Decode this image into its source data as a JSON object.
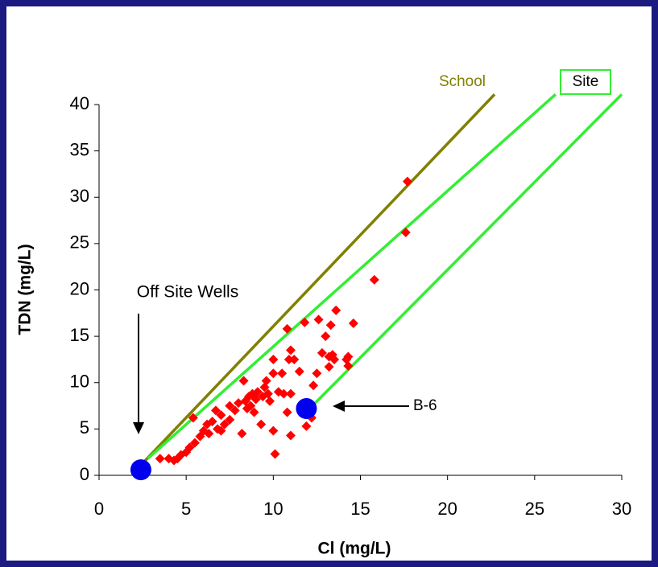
{
  "chart_data": {
    "type": "scatter",
    "x_label": "Cl (mg/L)",
    "y_label": "TDN (mg/L)",
    "xlim": [
      0,
      30
    ],
    "xticks": [
      0,
      5,
      10,
      15,
      20,
      25,
      30
    ],
    "ylim": [
      0,
      40
    ],
    "yticks": [
      0,
      5,
      10,
      15,
      20,
      25,
      30,
      35,
      40
    ],
    "series": [
      {
        "name": "School",
        "color": "#808000",
        "x": [
          2.5,
          22.7
        ],
        "values": [
          1.3,
          41.1
        ]
      },
      {
        "name": "Site",
        "color": "#33ee33",
        "x": [
          2.8,
          26.2,
          null,
          12.3,
          30
        ],
        "values": [
          1.8,
          41.1,
          null,
          7.6,
          41.1
        ]
      }
    ],
    "points": {
      "color": "#ff0000",
      "x": [
        3.5,
        4,
        4.3,
        4.5,
        4.7,
        5,
        5.2,
        5.4,
        5.5,
        5.8,
        6,
        6.2,
        6.3,
        6.5,
        6.7,
        6.8,
        7,
        7,
        7.2,
        7.5,
        7.5,
        7.8,
        8,
        8.2,
        8.3,
        8.4,
        8.5,
        8.6,
        8.7,
        8.8,
        8.9,
        9,
        9.1,
        9.3,
        9.4,
        9.5,
        9.6,
        9.7,
        9.8,
        10,
        10,
        10,
        10.1,
        10.3,
        10.5,
        10.6,
        10.8,
        10.8,
        10.9,
        11,
        11,
        11,
        11.2,
        11.5,
        11.8,
        11.9,
        12.2,
        12.3,
        12.5,
        12.6,
        12.8,
        13,
        13.2,
        13.2,
        13.3,
        13.4,
        13.5,
        13.6,
        14.2,
        14.3,
        14.3,
        14.6,
        15.8,
        17.6,
        17.7
      ],
      "values": [
        1.8,
        1.8,
        1.6,
        1.8,
        2.2,
        2.5,
        3,
        6.2,
        3.5,
        4.2,
        4.8,
        5.5,
        4.5,
        5.8,
        7,
        5,
        6.5,
        4.8,
        5.5,
        7.5,
        6,
        7,
        7.8,
        4.5,
        10.2,
        8,
        7.2,
        8.5,
        7.5,
        8.8,
        6.8,
        8.2,
        9,
        5.5,
        8.5,
        9.5,
        10.2,
        8.8,
        8,
        12.5,
        11,
        4.8,
        2.3,
        9,
        11,
        8.8,
        15.8,
        6.8,
        12.5,
        13.5,
        8.8,
        4.3,
        12.5,
        11.2,
        16.5,
        5.3,
        6.2,
        9.7,
        11,
        16.8,
        13.2,
        15,
        12.8,
        11.7,
        16.2,
        13,
        12.5,
        17.8,
        12.5,
        11.8,
        12.8,
        16.4,
        21.1,
        26.2,
        31.7
      ]
    },
    "highlights": {
      "color": "#0000ee",
      "x": [
        2.4,
        11.9
      ],
      "values": [
        0.6,
        7.2
      ]
    },
    "annotations": [
      {
        "text": "Off Site Wells"
      },
      {
        "text": "B-6"
      }
    ]
  }
}
